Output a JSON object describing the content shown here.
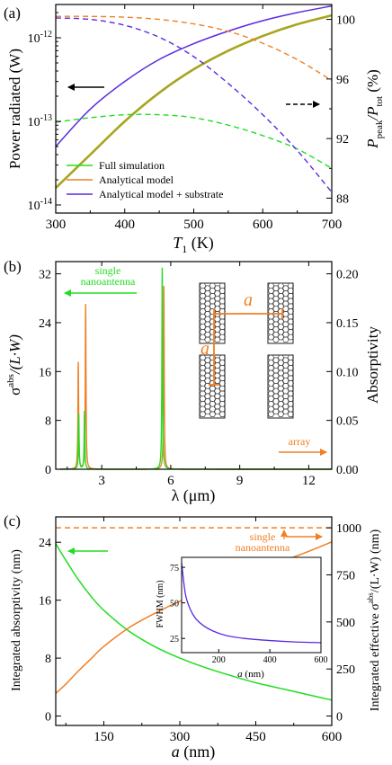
{
  "colors": {
    "green": "#22dd22",
    "orange": "#f07f24",
    "blue": "#5a2be0",
    "olive": "#a8a51e",
    "black": "#000000"
  },
  "chart_data": [
    {
      "panel": "(a)",
      "type": "line",
      "xlabel": "T",
      "xlabel_sub": "1",
      "xlabel_unit": " (K)",
      "ylabel": "Power radiated (W)",
      "ylabel_right_main": "P",
      "ylabel_right_sub1": "peak",
      "ylabel_right_mid": "/P",
      "ylabel_right_sub2": "tot",
      "ylabel_right_unit": " (%)",
      "xlim": [
        300,
        700
      ],
      "ylim": [
        8e-15,
        2.5e-12
      ],
      "yscale": "log",
      "ylim_right": [
        87,
        101
      ],
      "xticks": [
        "300",
        "400",
        "500",
        "600",
        "700"
      ],
      "yticks_left": [
        {
          "base": "10",
          "exp": "-12"
        },
        {
          "base": "10",
          "exp": "-13"
        },
        {
          "base": "10",
          "exp": "-14"
        }
      ],
      "yticks_right": [
        "88",
        "92",
        "96",
        "100"
      ],
      "legend": [
        "Full simulation",
        "Analytical model",
        "Analytical model + substrate"
      ],
      "legend_placement": "bottom-left",
      "x": [
        300,
        350,
        400,
        450,
        500,
        550,
        600,
        650,
        700
      ],
      "series_left": [
        {
          "name": "Full simulation",
          "color": "green",
          "values": [
            1.6e-14,
            4e-14,
            1e-13,
            2.2e-13,
            4.2e-13,
            7e-13,
            1.05e-12,
            1.45e-12,
            1.85e-12
          ]
        },
        {
          "name": "Analytical model",
          "color": "orange",
          "values": [
            1.6e-14,
            4e-14,
            1e-13,
            2.2e-13,
            4.2e-13,
            7e-13,
            1.05e-12,
            1.45e-12,
            1.85e-12
          ]
        },
        {
          "name": "Analytical model + substrate",
          "color": "blue",
          "values": [
            5e-14,
            1.4e-13,
            3e-13,
            5.5e-13,
            8.5e-13,
            1.2e-12,
            1.6e-12,
            2e-12,
            2.4e-12
          ]
        }
      ],
      "series_right": [
        {
          "name": "Full simulation",
          "color": "green",
          "values": [
            93.1,
            93.4,
            93.6,
            93.6,
            93.4,
            92.9,
            92.2,
            91.3,
            90.0
          ]
        },
        {
          "name": "Analytical model",
          "color": "orange",
          "values": [
            100.2,
            100.2,
            100.15,
            100.0,
            99.7,
            99.2,
            98.4,
            97.3,
            95.9
          ]
        },
        {
          "name": "Analytical model + substrate",
          "color": "blue",
          "values": [
            100.1,
            100.0,
            99.6,
            98.8,
            97.5,
            95.7,
            93.6,
            91.2,
            88.4
          ]
        }
      ]
    },
    {
      "panel": "(b)",
      "type": "line",
      "xlabel": "λ (μm)",
      "ylabel_main": "σ",
      "ylabel_sup": "abs",
      "ylabel_rest": "/(L·W)",
      "ylabel_right": "Absorptivity",
      "xlim": [
        1.0,
        13.0
      ],
      "ylim": [
        0,
        34
      ],
      "ylim_right": [
        0,
        0.2125
      ],
      "xticks": [
        "3",
        "6",
        "9",
        "12"
      ],
      "yticks_left": [
        "0",
        "8",
        "16",
        "24",
        "32"
      ],
      "yticks_right": [
        "0.00",
        "0.05",
        "0.10",
        "0.15",
        "0.20"
      ],
      "series": [
        {
          "name": "single nanoantenna",
          "color": "green",
          "peaks": [
            {
              "x": 2.0,
              "y": 9.0
            },
            {
              "x": 2.25,
              "y": 9.5
            },
            {
              "x": 5.63,
              "y": 33.0
            }
          ]
        },
        {
          "name": "array",
          "color": "orange",
          "peaks": [
            {
              "x": 1.98,
              "y": 17.5
            },
            {
              "x": 2.3,
              "y": 27.0
            },
            {
              "x": 5.7,
              "y": 30.0
            }
          ]
        }
      ],
      "annotations": [
        "single",
        "nanoantenna",
        "array",
        "a",
        "a"
      ]
    },
    {
      "panel": "(c)",
      "type": "line",
      "xlabel": "a (nm)",
      "ylabel": "Integrated absorptivity (nm)",
      "ylabel_right_a": "Integrated effective σ",
      "ylabel_right_sup": "abs",
      "ylabel_right_b": "/(L·W) (nm)",
      "xlim": [
        55,
        600
      ],
      "ylim": [
        -1.3,
        27.5
      ],
      "ylim_right": [
        -50,
        1058
      ],
      "xticks": [
        "150",
        "300",
        "450",
        "600"
      ],
      "yticks_left": [
        "0",
        "8",
        "16",
        "24"
      ],
      "yticks_right": [
        "0",
        "250",
        "500",
        "750",
        "1000"
      ],
      "x": [
        55,
        75,
        100,
        125,
        150,
        200,
        250,
        300,
        350,
        400,
        450,
        500,
        550,
        600
      ],
      "series": [
        {
          "name": "Integrated absorptivity",
          "color": "green",
          "axis": "left",
          "values": [
            23.8,
            21.5,
            18.8,
            16.5,
            14.6,
            11.7,
            9.6,
            8.0,
            6.7,
            5.6,
            4.6,
            3.8,
            3.0,
            2.2
          ]
        },
        {
          "name": "Integrated effective σ",
          "color": "orange",
          "axis": "right",
          "values": [
            120,
            170,
            240,
            305,
            370,
            470,
            545,
            610,
            665,
            720,
            770,
            820,
            870,
            925
          ]
        }
      ],
      "reference_value_right": 1000,
      "annotations": [
        "single",
        "nanoantenna"
      ],
      "inset": {
        "type": "line",
        "xlabel": "a (nm)",
        "ylabel": "FWHM (nm)",
        "xlim": [
          55,
          600
        ],
        "ylim": [
          15,
          82
        ],
        "xticks": [
          "200",
          "400",
          "600"
        ],
        "yticks": [
          "25",
          "50",
          "75"
        ],
        "x": [
          55,
          70,
          90,
          110,
          140,
          180,
          230,
          300,
          400,
          500,
          600
        ],
        "values": [
          78,
          56,
          45,
          39,
          34,
          30,
          27,
          25,
          23.5,
          22.5,
          22
        ]
      }
    }
  ]
}
